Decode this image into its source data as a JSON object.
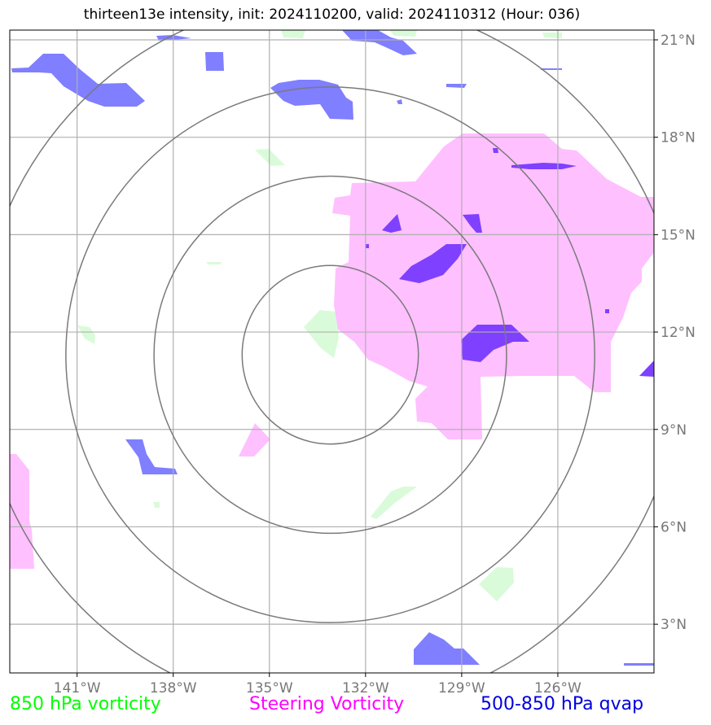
{
  "title": "thirteen13e intensity, init: 2024110200, valid: 2024110312 (Hour: 036)",
  "map": {
    "lon_range": [
      -143.1,
      -123.0
    ],
    "lat_range": [
      1.5,
      21.3
    ],
    "lon_ticks": [
      {
        "value": -141,
        "label": "141°W"
      },
      {
        "value": -138,
        "label": "138°W"
      },
      {
        "value": -135,
        "label": "135°W"
      },
      {
        "value": -132,
        "label": "132°W"
      },
      {
        "value": -129,
        "label": "129°W"
      },
      {
        "value": -126,
        "label": "126°W"
      }
    ],
    "lat_ticks": [
      {
        "value": 3,
        "label": "3°N"
      },
      {
        "value": 6,
        "label": "6°N"
      },
      {
        "value": 9,
        "label": "9°N"
      },
      {
        "value": 12,
        "label": "12°N"
      },
      {
        "value": 15,
        "label": "15°N"
      },
      {
        "value": 18,
        "label": "18°N"
      },
      {
        "value": 21,
        "label": "21°N"
      }
    ],
    "grid": true,
    "center": {
      "lon": -133.1,
      "lat": 11.3
    },
    "range_rings_radius_deg": [
      2.75,
      5.5,
      8.25,
      11.0
    ]
  },
  "colors": {
    "vorticity_850": "#00ff00",
    "steering_vorticity": "#ff00ff",
    "qvap": "#0000dd",
    "fill_850": "#d9fbd9",
    "fill_steering": "#ffc0ff",
    "fill_qvap": "#7f7fff",
    "fill_overlap": "#7f40ff",
    "grid": "#b0b0b0",
    "rings": "#7a7a7a"
  },
  "legend": [
    {
      "label": "850 hPa vorticity",
      "color": "#00ff00"
    },
    {
      "label": "Steering Vorticity",
      "color": "#ff00ff"
    },
    {
      "label": "500-850 hPa qvap",
      "color": "#0000dd"
    }
  ]
}
